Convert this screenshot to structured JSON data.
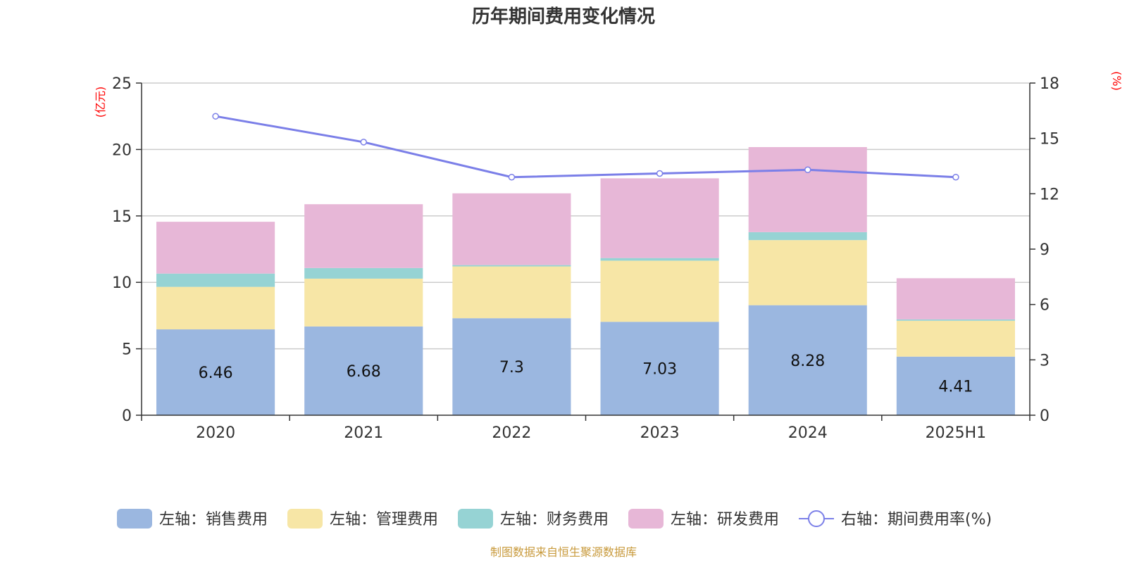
{
  "chart_data": {
    "type": "bar",
    "title": "历年期间费用变化情况",
    "stacked": true,
    "categories": [
      "2020",
      "2021",
      "2022",
      "2023",
      "2024",
      "2025H1"
    ],
    "y_left": {
      "unit": "(亿元)",
      "ylim": [
        0,
        25
      ],
      "ticks": [
        0,
        5,
        10,
        15,
        20,
        25
      ]
    },
    "y_right": {
      "unit": "(%)",
      "ylim": [
        0,
        18
      ],
      "ticks": [
        0,
        3,
        6,
        9,
        12,
        15,
        18
      ]
    },
    "grid": true,
    "legend_position": "bottom",
    "series": [
      {
        "name": "左轴：销售费用",
        "type": "bar",
        "axis": "left",
        "color": "#9bb7e0",
        "values": [
          6.46,
          6.68,
          7.3,
          7.03,
          8.28,
          4.41
        ],
        "show_labels": true
      },
      {
        "name": "左轴：管理费用",
        "type": "bar",
        "axis": "left",
        "color": "#f7e6a6",
        "values": [
          3.2,
          3.6,
          3.9,
          4.6,
          4.9,
          2.7
        ]
      },
      {
        "name": "左轴：财务费用",
        "type": "bar",
        "axis": "left",
        "color": "#96d3d4",
        "values": [
          1.0,
          0.8,
          0.1,
          0.2,
          0.6,
          0.1
        ]
      },
      {
        "name": "左轴：研发费用",
        "type": "bar",
        "axis": "left",
        "color": "#e7b7d7",
        "values": [
          3.9,
          4.8,
          5.4,
          6.0,
          6.4,
          3.1
        ]
      },
      {
        "name": "右轴：期间费用率(%)",
        "type": "line",
        "axis": "right",
        "color": "#7b7fe8",
        "values": [
          16.2,
          14.8,
          12.9,
          13.1,
          13.3,
          12.9
        ]
      }
    ],
    "source": "制图数据来自恒生聚源数据库"
  }
}
